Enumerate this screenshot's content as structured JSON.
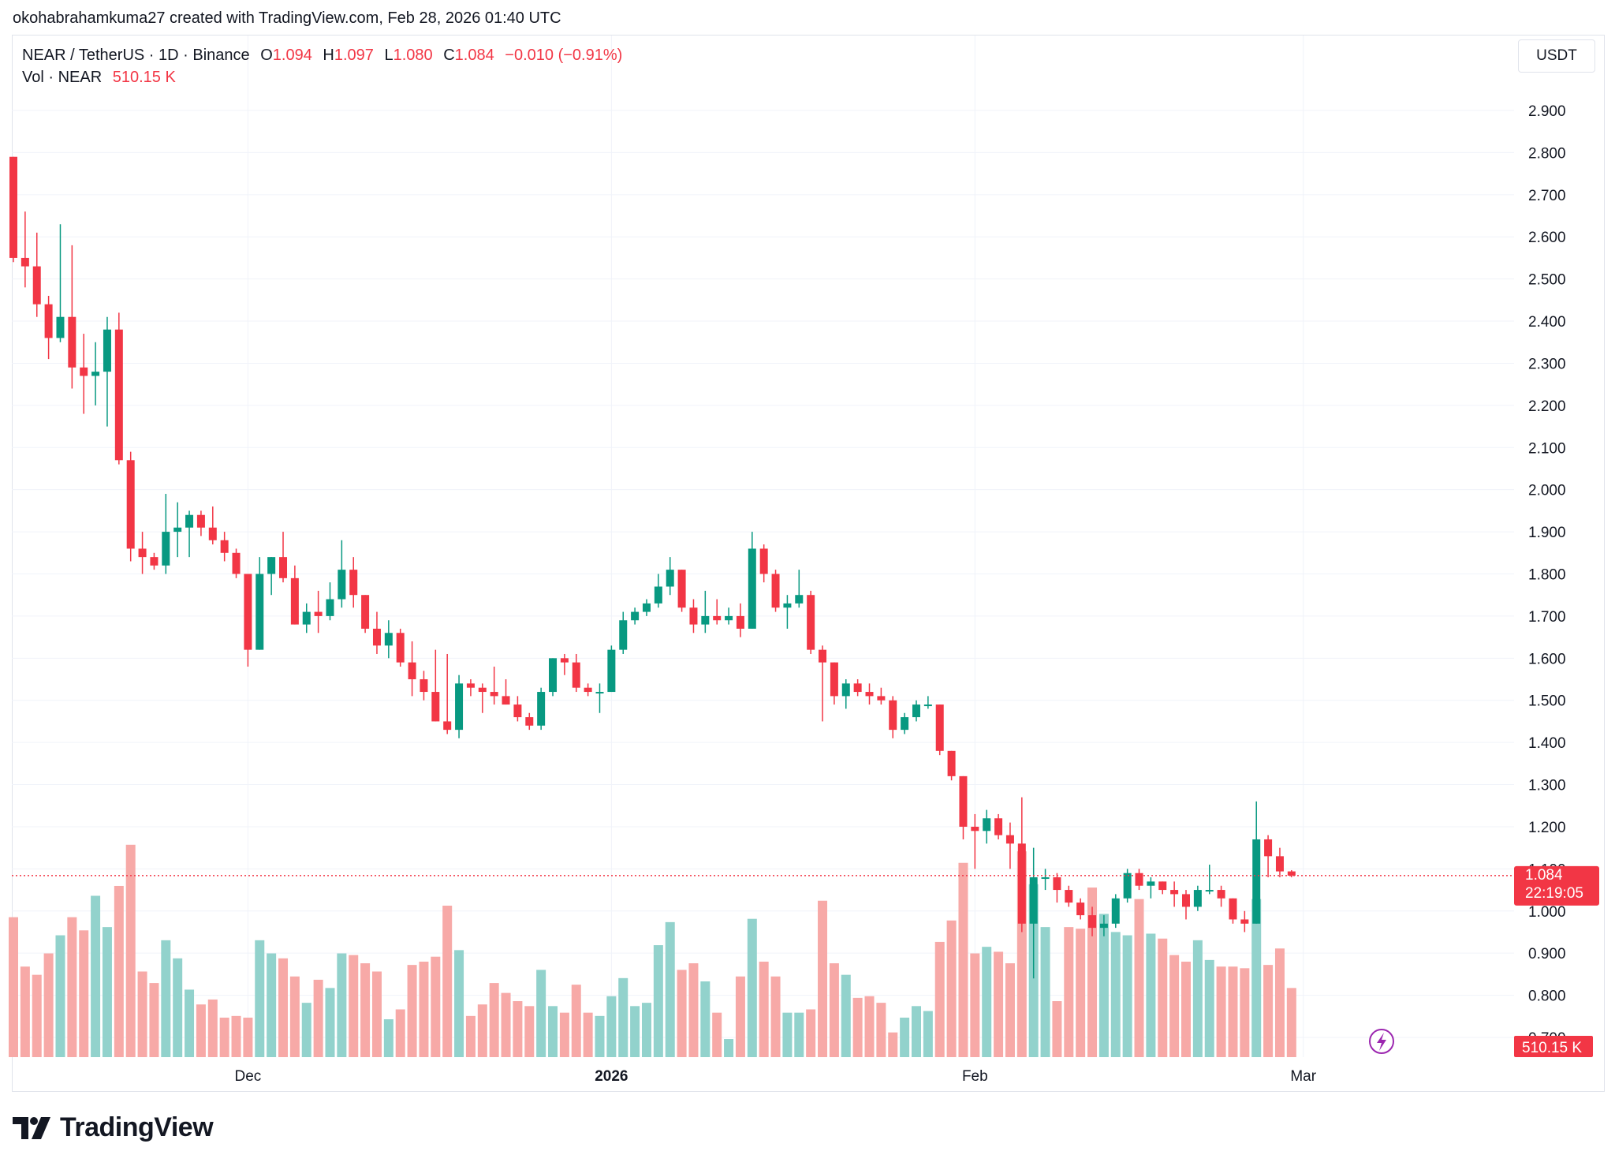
{
  "header": {
    "credit": "okohabrahamkuma27 created with TradingView.com, Feb 28, 2026 01:40 UTC"
  },
  "legend": {
    "symbol": "NEAR / TetherUS · 1D · Binance",
    "o_label": "O",
    "o": "1.094",
    "h_label": "H",
    "h": "1.097",
    "l_label": "L",
    "l": "1.080",
    "c_label": "C",
    "c": "1.084",
    "change": "−0.010 (−0.91%)",
    "vol_label": "Vol · NEAR",
    "vol": "510.15 K"
  },
  "currency_button": "USDT",
  "price_badge": {
    "price": "1.084",
    "countdown": "22:19:05"
  },
  "volume_badge": "510.15 K",
  "footer": {
    "brand": "TradingView"
  },
  "colors": {
    "up": "#089981",
    "down": "#f23645",
    "vol_up": "#92d2cc",
    "vol_down": "#f7a9a7",
    "grid": "#f0f3fa"
  },
  "chart_data": {
    "type": "candlestick",
    "title": "NEAR / TetherUS · 1D · Binance",
    "ylabel": "USDT",
    "ylim": [
      0.7,
      2.95
    ],
    "y_ticks": [
      "2.900",
      "2.800",
      "2.700",
      "2.600",
      "2.500",
      "2.400",
      "2.300",
      "2.200",
      "2.100",
      "2.000",
      "1.900",
      "1.800",
      "1.700",
      "1.600",
      "1.500",
      "1.400",
      "1.300",
      "1.200",
      "1.100",
      "1.000",
      "0.900",
      "0.800",
      "0.700"
    ],
    "x_ticks": [
      {
        "label": "Dec",
        "index": 20
      },
      {
        "label": "2026",
        "index": 51
      },
      {
        "label": "Feb",
        "index": 82
      },
      {
        "label": "Mar",
        "index": 110
      }
    ],
    "volume_max": 1.15,
    "candles": [
      [
        2.79,
        2.79,
        2.54,
        2.55,
        0.85
      ],
      [
        2.55,
        2.66,
        2.48,
        2.53,
        0.55
      ],
      [
        2.53,
        2.61,
        2.41,
        2.44,
        0.5
      ],
      [
        2.44,
        2.46,
        2.31,
        2.36,
        0.63
      ],
      [
        2.36,
        2.63,
        2.35,
        2.41,
        0.74
      ],
      [
        2.41,
        2.58,
        2.24,
        2.29,
        0.85
      ],
      [
        2.29,
        2.37,
        2.18,
        2.27,
        0.77
      ],
      [
        2.27,
        2.35,
        2.2,
        2.28,
        0.98
      ],
      [
        2.28,
        2.41,
        2.15,
        2.38,
        0.79
      ],
      [
        2.38,
        2.42,
        2.06,
        2.07,
        1.04
      ],
      [
        2.07,
        2.09,
        1.83,
        1.86,
        1.29
      ],
      [
        1.86,
        1.9,
        1.8,
        1.84,
        0.52
      ],
      [
        1.84,
        1.85,
        1.81,
        1.82,
        0.45
      ],
      [
        1.82,
        1.99,
        1.8,
        1.9,
        0.71
      ],
      [
        1.9,
        1.97,
        1.84,
        1.91,
        0.6
      ],
      [
        1.91,
        1.95,
        1.84,
        1.94,
        0.41
      ],
      [
        1.94,
        1.95,
        1.89,
        1.91,
        0.32
      ],
      [
        1.91,
        1.96,
        1.87,
        1.88,
        0.35
      ],
      [
        1.88,
        1.9,
        1.83,
        1.85,
        0.24
      ],
      [
        1.85,
        1.86,
        1.79,
        1.8,
        0.25
      ],
      [
        1.8,
        1.8,
        1.58,
        1.62,
        0.24
      ],
      [
        1.62,
        1.84,
        1.62,
        1.8,
        0.71
      ],
      [
        1.8,
        1.84,
        1.75,
        1.84,
        0.63
      ],
      [
        1.84,
        1.9,
        1.78,
        1.79,
        0.6
      ],
      [
        1.79,
        1.82,
        1.68,
        1.68,
        0.49
      ],
      [
        1.68,
        1.73,
        1.66,
        1.71,
        0.33
      ],
      [
        1.71,
        1.76,
        1.66,
        1.7,
        0.47
      ],
      [
        1.7,
        1.78,
        1.69,
        1.74,
        0.42
      ],
      [
        1.74,
        1.88,
        1.72,
        1.81,
        0.63
      ],
      [
        1.81,
        1.84,
        1.72,
        1.75,
        0.62
      ],
      [
        1.75,
        1.75,
        1.66,
        1.67,
        0.57
      ],
      [
        1.67,
        1.71,
        1.61,
        1.63,
        0.52
      ],
      [
        1.63,
        1.69,
        1.6,
        1.66,
        0.23
      ],
      [
        1.66,
        1.67,
        1.58,
        1.59,
        0.29
      ],
      [
        1.59,
        1.64,
        1.51,
        1.55,
        0.56
      ],
      [
        1.55,
        1.57,
        1.5,
        1.52,
        0.58
      ],
      [
        1.52,
        1.62,
        1.45,
        1.45,
        0.61
      ],
      [
        1.45,
        1.61,
        1.42,
        1.43,
        0.92
      ],
      [
        1.43,
        1.56,
        1.41,
        1.54,
        0.65
      ],
      [
        1.54,
        1.55,
        1.51,
        1.53,
        0.25
      ],
      [
        1.53,
        1.54,
        1.47,
        1.52,
        0.32
      ],
      [
        1.52,
        1.58,
        1.49,
        1.51,
        0.45
      ],
      [
        1.51,
        1.55,
        1.49,
        1.49,
        0.39
      ],
      [
        1.49,
        1.51,
        1.45,
        1.46,
        0.34
      ],
      [
        1.46,
        1.47,
        1.43,
        1.44,
        0.31
      ],
      [
        1.44,
        1.53,
        1.43,
        1.52,
        0.53
      ],
      [
        1.52,
        1.6,
        1.51,
        1.6,
        0.31
      ],
      [
        1.6,
        1.61,
        1.56,
        1.59,
        0.27
      ],
      [
        1.59,
        1.61,
        1.52,
        1.53,
        0.44
      ],
      [
        1.53,
        1.54,
        1.51,
        1.52,
        0.27
      ],
      [
        1.52,
        1.54,
        1.47,
        1.52,
        0.25
      ],
      [
        1.52,
        1.63,
        1.52,
        1.62,
        0.37
      ],
      [
        1.62,
        1.71,
        1.61,
        1.69,
        0.48
      ],
      [
        1.69,
        1.72,
        1.68,
        1.71,
        0.31
      ],
      [
        1.71,
        1.74,
        1.7,
        1.73,
        0.33
      ],
      [
        1.73,
        1.8,
        1.72,
        1.77,
        0.68
      ],
      [
        1.77,
        1.84,
        1.75,
        1.81,
        0.82
      ],
      [
        1.81,
        1.81,
        1.71,
        1.72,
        0.53
      ],
      [
        1.72,
        1.74,
        1.66,
        1.68,
        0.57
      ],
      [
        1.68,
        1.76,
        1.66,
        1.7,
        0.46
      ],
      [
        1.7,
        1.74,
        1.68,
        1.69,
        0.27
      ],
      [
        1.69,
        1.72,
        1.68,
        1.7,
        0.11
      ],
      [
        1.7,
        1.73,
        1.65,
        1.67,
        0.49
      ],
      [
        1.67,
        1.9,
        1.67,
        1.86,
        0.84
      ],
      [
        1.86,
        1.87,
        1.78,
        1.8,
        0.58
      ],
      [
        1.8,
        1.81,
        1.71,
        1.72,
        0.49
      ],
      [
        1.72,
        1.75,
        1.67,
        1.73,
        0.27
      ],
      [
        1.73,
        1.81,
        1.72,
        1.75,
        0.27
      ],
      [
        1.75,
        1.76,
        1.61,
        1.62,
        0.29
      ],
      [
        1.62,
        1.63,
        1.45,
        1.59,
        0.95
      ],
      [
        1.59,
        1.59,
        1.49,
        1.51,
        0.57
      ],
      [
        1.51,
        1.55,
        1.48,
        1.54,
        0.5
      ],
      [
        1.54,
        1.55,
        1.51,
        1.52,
        0.36
      ],
      [
        1.52,
        1.54,
        1.49,
        1.51,
        0.37
      ],
      [
        1.51,
        1.53,
        1.49,
        1.5,
        0.33
      ],
      [
        1.5,
        1.51,
        1.41,
        1.43,
        0.15
      ],
      [
        1.43,
        1.47,
        1.42,
        1.46,
        0.24
      ],
      [
        1.46,
        1.5,
        1.45,
        1.49,
        0.31
      ],
      [
        1.49,
        1.51,
        1.48,
        1.49,
        0.28
      ],
      [
        1.49,
        1.49,
        1.37,
        1.38,
        0.7
      ],
      [
        1.38,
        1.38,
        1.31,
        1.32,
        0.83
      ],
      [
        1.32,
        1.32,
        1.17,
        1.2,
        1.18
      ],
      [
        1.2,
        1.23,
        1.1,
        1.19,
        0.63
      ],
      [
        1.19,
        1.24,
        1.16,
        1.22,
        0.67
      ],
      [
        1.22,
        1.23,
        1.17,
        1.18,
        0.64
      ],
      [
        1.18,
        1.21,
        1.1,
        1.16,
        0.57
      ],
      [
        1.16,
        1.27,
        0.95,
        0.97,
        1.25
      ],
      [
        0.97,
        1.15,
        0.84,
        1.08,
        1.05
      ],
      [
        1.08,
        1.1,
        1.05,
        1.08,
        0.79
      ],
      [
        1.08,
        1.09,
        1.02,
        1.05,
        0.34
      ],
      [
        1.05,
        1.06,
        1.01,
        1.02,
        0.79
      ],
      [
        1.02,
        1.03,
        0.98,
        0.99,
        0.78
      ],
      [
        0.99,
        1.01,
        0.94,
        0.96,
        1.03
      ],
      [
        0.96,
        0.99,
        0.94,
        0.97,
        0.87
      ],
      [
        0.97,
        1.04,
        0.96,
        1.03,
        0.76
      ],
      [
        1.03,
        1.1,
        1.02,
        1.09,
        0.74
      ],
      [
        1.09,
        1.1,
        1.05,
        1.06,
        0.96
      ],
      [
        1.06,
        1.08,
        1.03,
        1.07,
        0.75
      ],
      [
        1.07,
        1.07,
        1.04,
        1.05,
        0.72
      ],
      [
        1.05,
        1.07,
        1.01,
        1.04,
        0.62
      ],
      [
        1.04,
        1.05,
        0.98,
        1.01,
        0.58
      ],
      [
        1.01,
        1.06,
        1.0,
        1.05,
        0.71
      ],
      [
        1.05,
        1.11,
        1.04,
        1.05,
        0.59
      ],
      [
        1.05,
        1.06,
        1.01,
        1.03,
        0.55
      ],
      [
        1.03,
        1.03,
        0.97,
        0.98,
        0.55
      ],
      [
        0.98,
        1.0,
        0.95,
        0.97,
        0.54
      ],
      [
        0.97,
        1.26,
        0.97,
        1.17,
        0.96
      ],
      [
        1.17,
        1.18,
        1.08,
        1.13,
        0.56
      ],
      [
        1.13,
        1.15,
        1.08,
        1.094,
        0.66
      ],
      [
        1.094,
        1.097,
        1.08,
        1.084,
        0.42
      ]
    ]
  }
}
